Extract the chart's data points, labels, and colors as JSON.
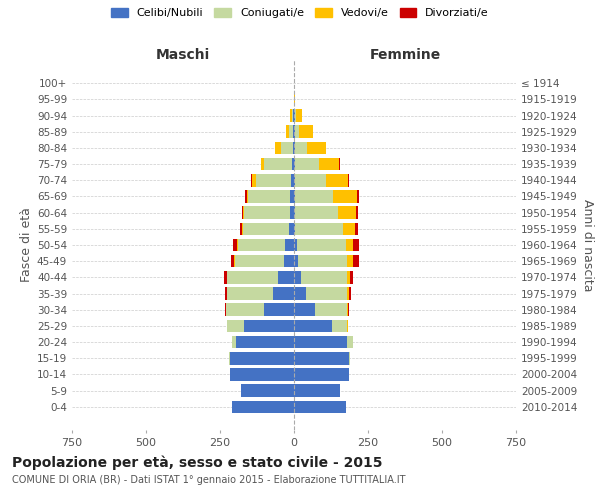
{
  "age_groups": [
    "0-4",
    "5-9",
    "10-14",
    "15-19",
    "20-24",
    "25-29",
    "30-34",
    "35-39",
    "40-44",
    "45-49",
    "50-54",
    "55-59",
    "60-64",
    "65-69",
    "70-74",
    "75-79",
    "80-84",
    "85-89",
    "90-94",
    "95-99",
    "100+"
  ],
  "birth_years": [
    "2010-2014",
    "2005-2009",
    "2000-2004",
    "1995-1999",
    "1990-1994",
    "1985-1989",
    "1980-1984",
    "1975-1979",
    "1970-1974",
    "1965-1969",
    "1960-1964",
    "1955-1959",
    "1950-1954",
    "1945-1949",
    "1940-1944",
    "1935-1939",
    "1930-1934",
    "1925-1929",
    "1920-1924",
    "1915-1919",
    "≤ 1914"
  ],
  "maschi": {
    "celibi": [
      210,
      180,
      215,
      215,
      195,
      170,
      100,
      70,
      55,
      35,
      30,
      18,
      15,
      12,
      10,
      8,
      5,
      3,
      2,
      0,
      0
    ],
    "coniugati": [
      0,
      0,
      2,
      3,
      15,
      55,
      130,
      155,
      170,
      165,
      160,
      155,
      155,
      145,
      120,
      95,
      40,
      15,
      5,
      0,
      0
    ],
    "vedovi": [
      0,
      0,
      0,
      0,
      0,
      0,
      1,
      1,
      2,
      2,
      2,
      2,
      2,
      3,
      12,
      10,
      20,
      10,
      5,
      0,
      0
    ],
    "divorziati": [
      0,
      0,
      0,
      0,
      0,
      2,
      3,
      8,
      8,
      12,
      15,
      8,
      5,
      5,
      3,
      0,
      0,
      0,
      0,
      0,
      0
    ]
  },
  "femmine": {
    "nubili": [
      175,
      155,
      185,
      185,
      180,
      130,
      70,
      40,
      25,
      15,
      10,
      5,
      5,
      3,
      3,
      3,
      3,
      3,
      2,
      0,
      0
    ],
    "coniugate": [
      0,
      0,
      2,
      5,
      20,
      50,
      110,
      140,
      155,
      165,
      165,
      160,
      145,
      130,
      105,
      80,
      40,
      15,
      5,
      0,
      0
    ],
    "vedove": [
      0,
      0,
      0,
      0,
      1,
      2,
      3,
      5,
      10,
      20,
      25,
      40,
      60,
      80,
      75,
      70,
      65,
      45,
      20,
      3,
      0
    ],
    "divorziate": [
      0,
      0,
      0,
      0,
      0,
      2,
      3,
      8,
      10,
      20,
      20,
      10,
      5,
      5,
      3,
      3,
      0,
      0,
      0,
      0,
      0
    ]
  },
  "colors": {
    "celibi": "#4472c4",
    "coniugati": "#c5d9a0",
    "vedovi": "#ffc000",
    "divorziati": "#cc0000"
  },
  "xlim": 750,
  "title": "Popolazione per età, sesso e stato civile - 2015",
  "subtitle": "COMUNE DI ORIA (BR) - Dati ISTAT 1° gennaio 2015 - Elaborazione TUTTITALIA.IT",
  "ylabel_left": "Fasce di età",
  "ylabel_right": "Anni di nascita",
  "xlabel_left": "Maschi",
  "xlabel_right": "Femmine",
  "legend_labels": [
    "Celibi/Nubili",
    "Coniugati/e",
    "Vedovi/e",
    "Divorziati/e"
  ],
  "background_color": "#ffffff",
  "grid_color": "#cccccc"
}
